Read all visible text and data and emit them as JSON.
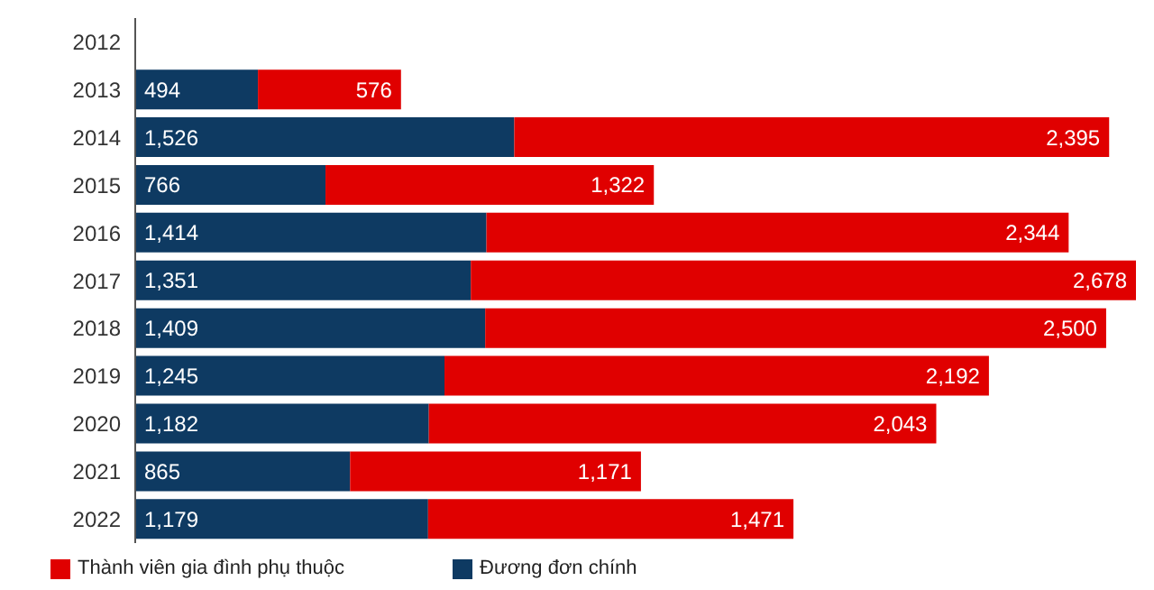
{
  "chart_data": {
    "type": "bar",
    "orientation": "horizontal",
    "stacked": true,
    "legend": "bottom left",
    "categories": [
      "2012",
      "2013",
      "2014",
      "2015",
      "2016",
      "2017",
      "2018",
      "2019",
      "2020",
      "2021",
      "2022"
    ],
    "series": [
      {
        "name": "Đương đơn chính",
        "color": "#0e3a62",
        "values": [
          null,
          494,
          1526,
          766,
          1414,
          1351,
          1409,
          1245,
          1182,
          865,
          1179
        ],
        "value_labels": [
          null,
          "494",
          "1,526",
          "766",
          "1,414",
          "1,351",
          "1,409",
          "1,245",
          "1,182",
          "865",
          "1,179"
        ]
      },
      {
        "name": "Thành viên gia đình phụ thuộc",
        "color": "#e00000",
        "values": [
          null,
          576,
          2395,
          1322,
          2344,
          2678,
          2500,
          2192,
          2043,
          1171,
          1471
        ],
        "value_labels": [
          null,
          "576",
          "2,395",
          "1,322",
          "2,344",
          "2,678",
          "2,500",
          "2,192",
          "2,043",
          "1,171",
          "1,471"
        ]
      }
    ]
  }
}
